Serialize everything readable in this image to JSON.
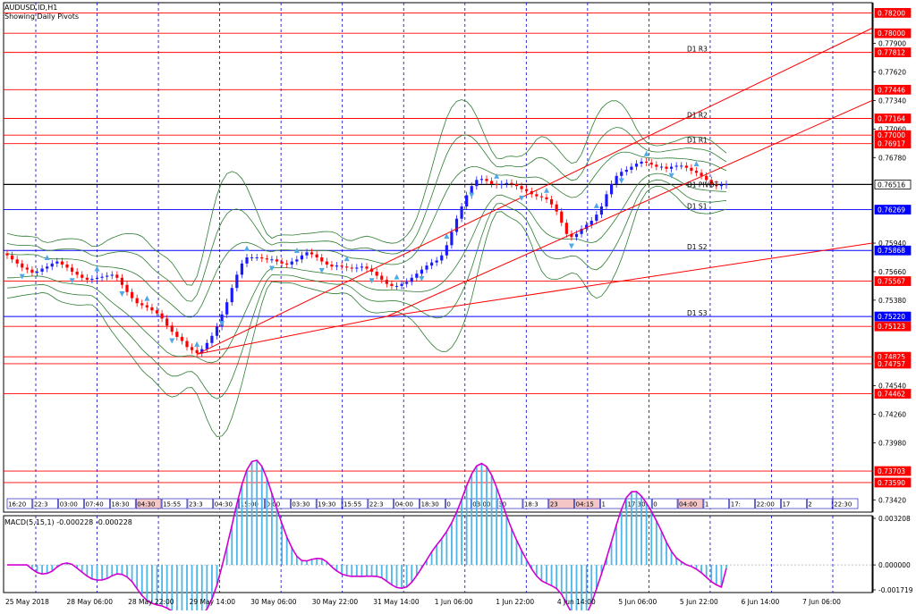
{
  "header": {
    "symbol_line": "AUDUSD.ID,H1",
    "subtitle": "Showing Daily Pivots"
  },
  "macd_label": "MACD(5,15,1) -0.000228 -0.000228",
  "colors": {
    "bull_candle": "#1a1aff",
    "bear_candle": "#ff0000",
    "bands": "#2e7d32",
    "pivot_lines": "#ff0000",
    "support_lines": "#0000ff",
    "trend_lines": "#ff0000",
    "macd_hist": "#4fb6e8",
    "macd_signal": "#d000d0",
    "fractal": "#4fa8e8"
  },
  "chart_data": [
    {
      "type": "candlestick",
      "instrument": "AUDUSD.ID",
      "timeframe": "H1",
      "ylim": [
        0.733,
        0.783
      ],
      "y_ticks": [
        "0.78200",
        "0.78000",
        "0.77900",
        "0.77812",
        "0.77620",
        "0.77446",
        "0.77340",
        "0.77164",
        "0.77060",
        "0.77000",
        "0.76917",
        "0.76780",
        "0.76516",
        "0.76269",
        "0.75940",
        "0.75868",
        "0.75660",
        "0.75567",
        "0.75380",
        "0.75220",
        "0.75123",
        "0.74825",
        "0.74757",
        "0.74540",
        "0.74462",
        "0.74260",
        "0.73980",
        "0.73703",
        "0.73590",
        "0.73420"
      ],
      "current_price": "0.76516",
      "horizontal_levels": [
        {
          "value": 0.782,
          "label": "0.78200",
          "color": "red"
        },
        {
          "value": 0.78,
          "label": "0.78000",
          "color": "red"
        },
        {
          "value": 0.77812,
          "label": "0.77812",
          "color": "red"
        },
        {
          "value": 0.77446,
          "label": "0.77446",
          "color": "red"
        },
        {
          "value": 0.77164,
          "label": "0.77164",
          "color": "red"
        },
        {
          "value": 0.77,
          "label": "0.77000",
          "color": "red"
        },
        {
          "value": 0.76917,
          "label": "0.76917",
          "color": "red"
        },
        {
          "value": 0.76516,
          "label": "0.76516",
          "color": "black"
        },
        {
          "value": 0.76269,
          "label": "0.76269",
          "color": "blue"
        },
        {
          "value": 0.75868,
          "label": "0.75868",
          "color": "blue"
        },
        {
          "value": 0.75567,
          "label": "0.75567",
          "color": "red"
        },
        {
          "value": 0.7522,
          "label": "0.75220",
          "color": "blue"
        },
        {
          "value": 0.75123,
          "label": "0.75123",
          "color": "red"
        },
        {
          "value": 0.74825,
          "label": "0.74825",
          "color": "red"
        },
        {
          "value": 0.74757,
          "label": "0.74757",
          "color": "red"
        },
        {
          "value": 0.74462,
          "label": "0.74462",
          "color": "red"
        },
        {
          "value": 0.73703,
          "label": "0.73703",
          "color": "red"
        },
        {
          "value": 0.7359,
          "label": "0.73590",
          "color": "red"
        }
      ],
      "pivot_labels": [
        {
          "label": "D1 R3",
          "value": 0.77812
        },
        {
          "label": "D1 R2",
          "value": 0.77164
        },
        {
          "label": "D1 R1",
          "value": 0.76917
        },
        {
          "label": "D1 PIVOT",
          "value": 0.7648
        },
        {
          "label": "D1 S1",
          "value": 0.76269
        },
        {
          "label": "D1 S2",
          "value": 0.75868
        },
        {
          "label": "D1 S3",
          "value": 0.7522
        }
      ],
      "x_labels": [
        "25 May 2018",
        "28 May 06:00",
        "28 May 22:00",
        "29 May 14:00",
        "30 May 06:00",
        "30 May 22:00",
        "31 May 14:00",
        "1 Jun 06:00",
        "1 Jun 22:00",
        "4 Jun 14:00",
        "5 Jun 06:00",
        "5 Jun 22:00",
        "6 Jun 14:00",
        "7 Jun 06:00"
      ],
      "time_boxes": [
        "16:20",
        "22:3",
        "03:00",
        "07:40",
        "18:30",
        "04:30",
        "15:55",
        "23:3",
        "04:30",
        "15:00",
        "0:00",
        "03:30",
        "19:30",
        "15:55",
        "22:3",
        "04:00",
        "18:30",
        "0",
        "03:00",
        "30",
        "18:3",
        "23",
        "04:15",
        "1",
        "17:30",
        "0",
        "04:00",
        "1",
        "17:",
        "22:00",
        "17",
        "2",
        "22:30"
      ],
      "close_path": [
        0.7582,
        0.7578,
        0.7574,
        0.757,
        0.7568,
        0.7565,
        0.7566,
        0.7569,
        0.7571,
        0.7574,
        0.7576,
        0.7573,
        0.757,
        0.7566,
        0.7563,
        0.756,
        0.7558,
        0.7559,
        0.756,
        0.7561,
        0.7562,
        0.7563,
        0.756,
        0.7553,
        0.7546,
        0.754,
        0.7535,
        0.7533,
        0.7531,
        0.7528,
        0.7525,
        0.752,
        0.7513,
        0.7507,
        0.7502,
        0.7498,
        0.7492,
        0.7489,
        0.7486,
        0.749,
        0.7496,
        0.7503,
        0.7512,
        0.7524,
        0.7536,
        0.755,
        0.7563,
        0.7574,
        0.758,
        0.758,
        0.758,
        0.7579,
        0.7578,
        0.7578,
        0.7576,
        0.7574,
        0.7573,
        0.7576,
        0.7578,
        0.7582,
        0.7585,
        0.7583,
        0.758,
        0.7576,
        0.7573,
        0.7571,
        0.7572,
        0.7571,
        0.757,
        0.7569,
        0.757,
        0.7571,
        0.7569,
        0.7566,
        0.7562,
        0.7558,
        0.7554,
        0.7552,
        0.7552,
        0.7554,
        0.7556,
        0.756,
        0.7564,
        0.7568,
        0.7572,
        0.7575,
        0.7577,
        0.7582,
        0.7592,
        0.7605,
        0.7618,
        0.763,
        0.7641,
        0.765,
        0.7656,
        0.7657,
        0.7655,
        0.7652,
        0.7651,
        0.7652,
        0.7653,
        0.7652,
        0.765,
        0.7647,
        0.7645,
        0.7642,
        0.764,
        0.7639,
        0.7637,
        0.7632,
        0.7625,
        0.7614,
        0.7603,
        0.76,
        0.7603,
        0.7608,
        0.7612,
        0.7616,
        0.7622,
        0.763,
        0.7642,
        0.7652,
        0.766,
        0.7664,
        0.7666,
        0.7669,
        0.7672,
        0.7674,
        0.7673,
        0.7671,
        0.7669,
        0.7669,
        0.7667,
        0.7669,
        0.767,
        0.767,
        0.7668,
        0.7665,
        0.7663,
        0.766,
        0.7656,
        0.7652,
        0.765,
        0.7651,
        0.7652
      ],
      "macd_ylim": [
        -0.001719,
        0.003208
      ],
      "macd_ticks": [
        "0.003208",
        "0.000000",
        "-0.001719"
      ],
      "macd_value": -0.000228,
      "macd_signal_value": -0.000228
    }
  ]
}
